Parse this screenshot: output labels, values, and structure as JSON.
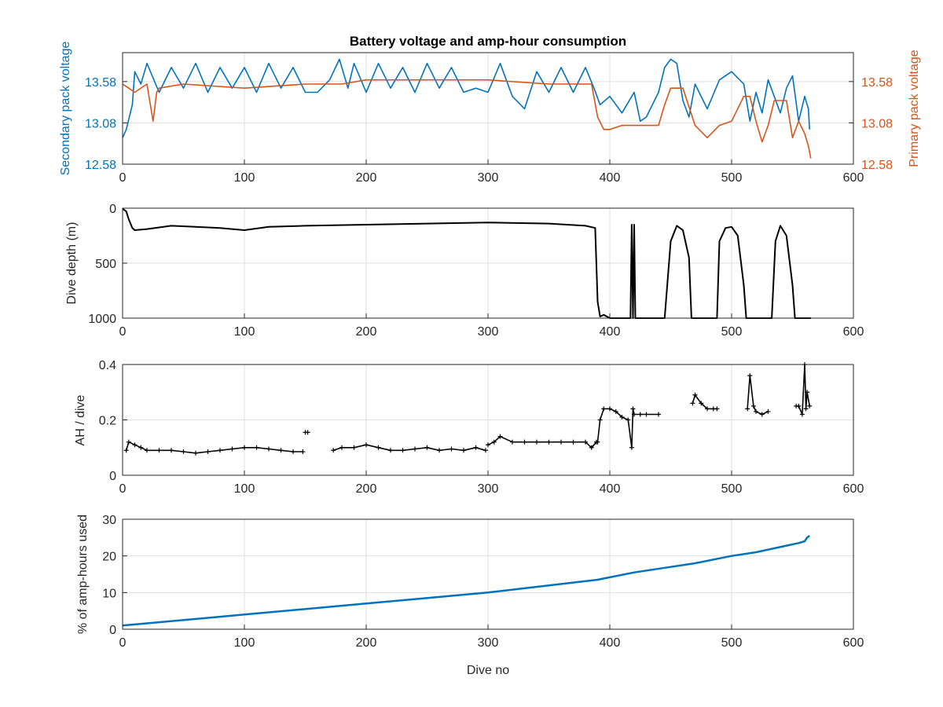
{
  "colors": {
    "secondary": "#0072BD",
    "primary": "#D95319",
    "black": "#000000",
    "axis": "#262626",
    "grid": "#dfdfdf"
  },
  "chart_data": [
    {
      "id": "voltage",
      "type": "line",
      "title": "Battery voltage and amp-hour consumption",
      "xlabel": "",
      "ylabel_left": "Secondary pack voltage",
      "ylabel_right": "Primary pack voltage",
      "xlim": [
        0,
        600
      ],
      "ylim": [
        12.58,
        13.93
      ],
      "xticks": [
        "0",
        "100",
        "200",
        "300",
        "400",
        "500",
        "600"
      ],
      "yticks_left": [
        "12.58",
        "13.08",
        "13.58"
      ],
      "yticks_right": [
        "12.58",
        "13.08",
        "13.58"
      ],
      "series": [
        {
          "name": "Secondary pack voltage",
          "axis": "left",
          "color": "#0072BD",
          "x": [
            0,
            3,
            8,
            10,
            15,
            20,
            30,
            40,
            50,
            60,
            70,
            80,
            90,
            100,
            110,
            120,
            130,
            140,
            150,
            160,
            170,
            178,
            185,
            190,
            200,
            210,
            220,
            230,
            240,
            250,
            260,
            270,
            280,
            290,
            300,
            310,
            320,
            330,
            340,
            350,
            360,
            370,
            380,
            387,
            392,
            400,
            410,
            420,
            425,
            430,
            440,
            445,
            450,
            455,
            460,
            465,
            470,
            480,
            490,
            500,
            510,
            515,
            520,
            525,
            530,
            540,
            545,
            550,
            555,
            560,
            563,
            564
          ],
          "values": [
            12.9,
            13.0,
            13.3,
            13.7,
            13.55,
            13.8,
            13.45,
            13.75,
            13.5,
            13.8,
            13.45,
            13.75,
            13.5,
            13.75,
            13.45,
            13.8,
            13.5,
            13.75,
            13.45,
            13.45,
            13.6,
            13.85,
            13.5,
            13.8,
            13.45,
            13.8,
            13.5,
            13.75,
            13.45,
            13.8,
            13.5,
            13.75,
            13.45,
            13.5,
            13.45,
            13.8,
            13.4,
            13.25,
            13.7,
            13.45,
            13.75,
            13.45,
            13.75,
            13.5,
            13.3,
            13.4,
            13.2,
            13.45,
            13.1,
            13.15,
            13.45,
            13.75,
            13.85,
            13.8,
            13.35,
            13.15,
            13.55,
            13.25,
            13.6,
            13.7,
            13.55,
            13.1,
            13.45,
            13.2,
            13.6,
            13.2,
            13.5,
            13.65,
            13.1,
            13.4,
            13.25,
            13.0
          ]
        },
        {
          "name": "Primary pack voltage",
          "axis": "right",
          "color": "#D95319",
          "x": [
            0,
            5,
            10,
            20,
            25,
            28,
            30,
            50,
            100,
            150,
            180,
            200,
            250,
            300,
            350,
            385,
            390,
            395,
            400,
            410,
            420,
            430,
            440,
            445,
            450,
            460,
            470,
            480,
            490,
            500,
            510,
            515,
            520,
            525,
            530,
            535,
            540,
            545,
            550,
            555,
            560,
            563,
            565
          ],
          "values": [
            13.55,
            13.5,
            13.45,
            13.55,
            13.1,
            13.45,
            13.5,
            13.55,
            13.5,
            13.55,
            13.55,
            13.6,
            13.6,
            13.6,
            13.55,
            13.55,
            13.15,
            13.0,
            13.0,
            13.05,
            13.05,
            13.05,
            13.05,
            13.3,
            13.5,
            13.5,
            13.05,
            12.9,
            13.05,
            13.1,
            13.4,
            13.4,
            13.1,
            12.85,
            13.05,
            13.35,
            13.35,
            13.35,
            12.9,
            13.1,
            12.95,
            12.8,
            12.65
          ]
        }
      ]
    },
    {
      "id": "depth",
      "type": "line",
      "xlabel": "",
      "ylabel": "Dive depth (m)",
      "xlim": [
        0,
        600
      ],
      "ylim": [
        0,
        1000
      ],
      "y_reversed": true,
      "xticks": [
        "0",
        "100",
        "200",
        "300",
        "400",
        "500",
        "600"
      ],
      "yticks": [
        "0",
        "500",
        "1000"
      ],
      "series": [
        {
          "color": "#000000",
          "x": [
            0,
            3,
            5,
            8,
            10,
            20,
            40,
            60,
            80,
            100,
            120,
            150,
            200,
            250,
            300,
            350,
            380,
            388,
            390,
            392,
            395,
            400,
            410,
            417,
            418,
            419,
            420,
            421,
            425,
            430,
            440,
            445,
            450,
            455,
            460,
            465,
            467,
            480,
            488,
            490,
            495,
            500,
            505,
            510,
            512,
            525,
            533,
            536,
            540,
            545,
            550,
            552,
            565
          ],
          "values": [
            5,
            30,
            100,
            180,
            200,
            190,
            160,
            170,
            180,
            200,
            170,
            160,
            150,
            140,
            130,
            140,
            160,
            180,
            850,
            985,
            970,
            1000,
            1000,
            1000,
            150,
            1000,
            150,
            1000,
            1000,
            1000,
            1000,
            1000,
            300,
            160,
            200,
            450,
            1000,
            1000,
            1000,
            300,
            180,
            170,
            250,
            700,
            1000,
            1000,
            1000,
            300,
            160,
            250,
            700,
            1000,
            1000
          ]
        }
      ]
    },
    {
      "id": "ah",
      "type": "scatter",
      "xlabel": "",
      "ylabel": "AH / dive",
      "xlim": [
        0,
        600
      ],
      "ylim": [
        0,
        0.4
      ],
      "xticks": [
        "0",
        "100",
        "200",
        "300",
        "400",
        "500",
        "600"
      ],
      "yticks": [
        "0",
        "0.2",
        "0.4"
      ],
      "series": [
        {
          "color": "#000000",
          "segments": [
            {
              "x": [
                3,
                5,
                10,
                15,
                20,
                30,
                40,
                50,
                60,
                70,
                80,
                90,
                100,
                110,
                120,
                130,
                140,
                148
              ],
              "values": [
                0.09,
                0.12,
                0.11,
                0.1,
                0.09,
                0.09,
                0.09,
                0.085,
                0.08,
                0.085,
                0.09,
                0.095,
                0.1,
                0.1,
                0.095,
                0.09,
                0.085,
                0.085
              ]
            },
            {
              "x": [
                150,
                152
              ],
              "values": [
                0.155,
                0.155
              ]
            },
            {
              "x": [
                173,
                180,
                190,
                200,
                210,
                220,
                230,
                240,
                250,
                260,
                270,
                280,
                290,
                298
              ],
              "values": [
                0.09,
                0.1,
                0.1,
                0.11,
                0.1,
                0.09,
                0.09,
                0.095,
                0.1,
                0.09,
                0.095,
                0.09,
                0.1,
                0.09
              ]
            },
            {
              "x": [
                300,
                305,
                310,
                320,
                330,
                340,
                350,
                360,
                370,
                380,
                385,
                389
              ],
              "values": [
                0.11,
                0.12,
                0.14,
                0.12,
                0.12,
                0.12,
                0.12,
                0.12,
                0.12,
                0.12,
                0.1,
                0.12
              ]
            },
            {
              "x": [
                390,
                392,
                395,
                400,
                405,
                410,
                415,
                418,
                419,
                420,
                425,
                430,
                440
              ],
              "values": [
                0.12,
                0.2,
                0.24,
                0.24,
                0.23,
                0.21,
                0.2,
                0.1,
                0.24,
                0.22,
                0.22,
                0.22,
                0.22
              ]
            },
            {
              "x": [
                468,
                470,
                475,
                480,
                485,
                488
              ],
              "values": [
                0.26,
                0.29,
                0.26,
                0.24,
                0.24,
                0.24
              ]
            },
            {
              "x": [
                513,
                515,
                518,
                520,
                525,
                530
              ],
              "values": [
                0.24,
                0.36,
                0.25,
                0.23,
                0.22,
                0.23
              ]
            },
            {
              "x": [
                553,
                555,
                558,
                560,
                561,
                562,
                564
              ],
              "values": [
                0.25,
                0.25,
                0.22,
                0.4,
                0.24,
                0.3,
                0.25
              ]
            }
          ]
        }
      ]
    },
    {
      "id": "pct",
      "type": "line",
      "xlabel": "Dive no",
      "ylabel": "% of amp-hours used",
      "xlim": [
        0,
        600
      ],
      "ylim": [
        0,
        30
      ],
      "xticks": [
        "0",
        "100",
        "200",
        "300",
        "400",
        "500",
        "600"
      ],
      "yticks": [
        "0",
        "10",
        "20",
        "30"
      ],
      "series": [
        {
          "color": "#0072BD",
          "x": [
            0,
            100,
            200,
            300,
            390,
            420,
            450,
            470,
            500,
            520,
            545,
            555,
            560,
            562,
            564
          ],
          "values": [
            1.0,
            4.0,
            7.0,
            10.0,
            13.5,
            15.5,
            17.0,
            18.0,
            20.0,
            21.0,
            22.8,
            23.5,
            24.0,
            25.0,
            25.5
          ]
        }
      ]
    }
  ]
}
